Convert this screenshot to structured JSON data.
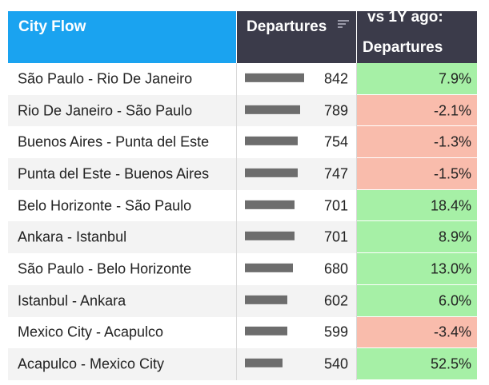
{
  "header": {
    "city_flow": "City Flow",
    "departures": "Departures",
    "vs_line1": "vs 1Y ago:",
    "vs_line2": "Departures"
  },
  "colors": {
    "header_city": "#1aa3f0",
    "header_dark": "#3b3b4a",
    "bar": "#6d6d6d",
    "positive": "#a6f0a6",
    "negative": "#f9bcac"
  },
  "rows": [
    {
      "city": "São Paulo - Rio De Janeiro",
      "departures": "842",
      "change": "7.9%",
      "sign": "pos"
    },
    {
      "city": "Rio De Janeiro - São Paulo",
      "departures": "789",
      "change": "-2.1%",
      "sign": "neg"
    },
    {
      "city": "Buenos Aires - Punta del Este",
      "departures": "754",
      "change": "-1.3%",
      "sign": "neg"
    },
    {
      "city": "Punta del Este - Buenos Aires",
      "departures": "747",
      "change": "-1.5%",
      "sign": "neg"
    },
    {
      "city": "Belo Horizonte - São Paulo",
      "departures": "701",
      "change": "18.4%",
      "sign": "pos"
    },
    {
      "city": "Ankara - Istanbul",
      "departures": "701",
      "change": "8.9%",
      "sign": "pos"
    },
    {
      "city": "São Paulo - Belo Horizonte",
      "departures": "680",
      "change": "13.0%",
      "sign": "pos"
    },
    {
      "city": "Istanbul - Ankara",
      "departures": "602",
      "change": "6.0%",
      "sign": "pos"
    },
    {
      "city": "Mexico City - Acapulco",
      "departures": "599",
      "change": "-3.4%",
      "sign": "neg"
    },
    {
      "city": "Acapulco - Mexico City",
      "departures": "540",
      "change": "52.5%",
      "sign": "pos"
    }
  ]
}
